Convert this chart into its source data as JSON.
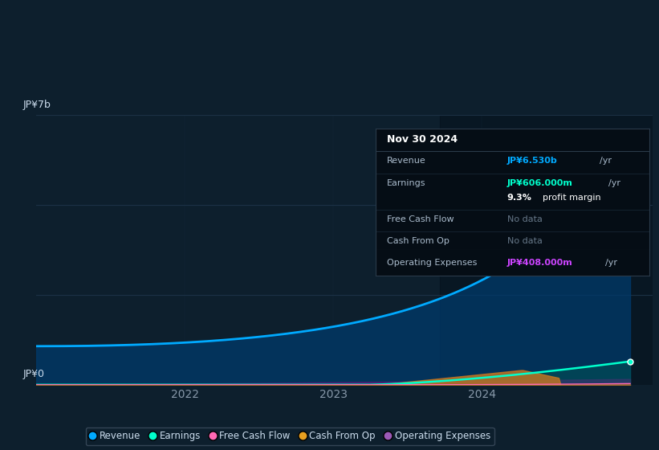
{
  "bg_color": "#0d1f2d",
  "plot_bg_color": "#0d1f2d",
  "grid_color": "#1e3448",
  "revenue_color": "#00aaff",
  "earnings_color": "#00ffcc",
  "free_cashflow_color": "#ff69b4",
  "cash_from_op_color": "#e8a020",
  "op_expenses_color": "#9b59b6",
  "revenue_fill_color": "#003a6b",
  "tooltip_title": "Nov 30 2024",
  "tooltip_revenue_label": "Revenue",
  "tooltip_revenue_val": "JP¥6.530b",
  "tooltip_revenue_color": "#00aaff",
  "tooltip_earnings_label": "Earnings",
  "tooltip_earnings_val": "JP¥606.000m",
  "tooltip_earnings_color": "#00ffcc",
  "tooltip_margin": "9.3%",
  "tooltip_margin_text": "profit margin",
  "tooltip_fcf_label": "Free Cash Flow",
  "tooltip_fcf_val": "No data",
  "tooltip_cfo_label": "Cash From Op",
  "tooltip_cfo_val": "No data",
  "tooltip_opex_label": "Operating Expenses",
  "tooltip_opex_val": "JP¥408.000m",
  "tooltip_opex_color": "#cc44ff",
  "tooltip_nodata_color": "#667788",
  "x_labels": [
    "2022",
    "2023",
    "2024"
  ],
  "ylabel_top": "JP¥7b",
  "ylabel_bottom": "JP¥0",
  "legend_items": [
    "Revenue",
    "Earnings",
    "Free Cash Flow",
    "Cash From Op",
    "Operating Expenses"
  ],
  "legend_colors": [
    "#00aaff",
    "#00ffcc",
    "#ff69b4",
    "#e8a020",
    "#9b59b6"
  ]
}
